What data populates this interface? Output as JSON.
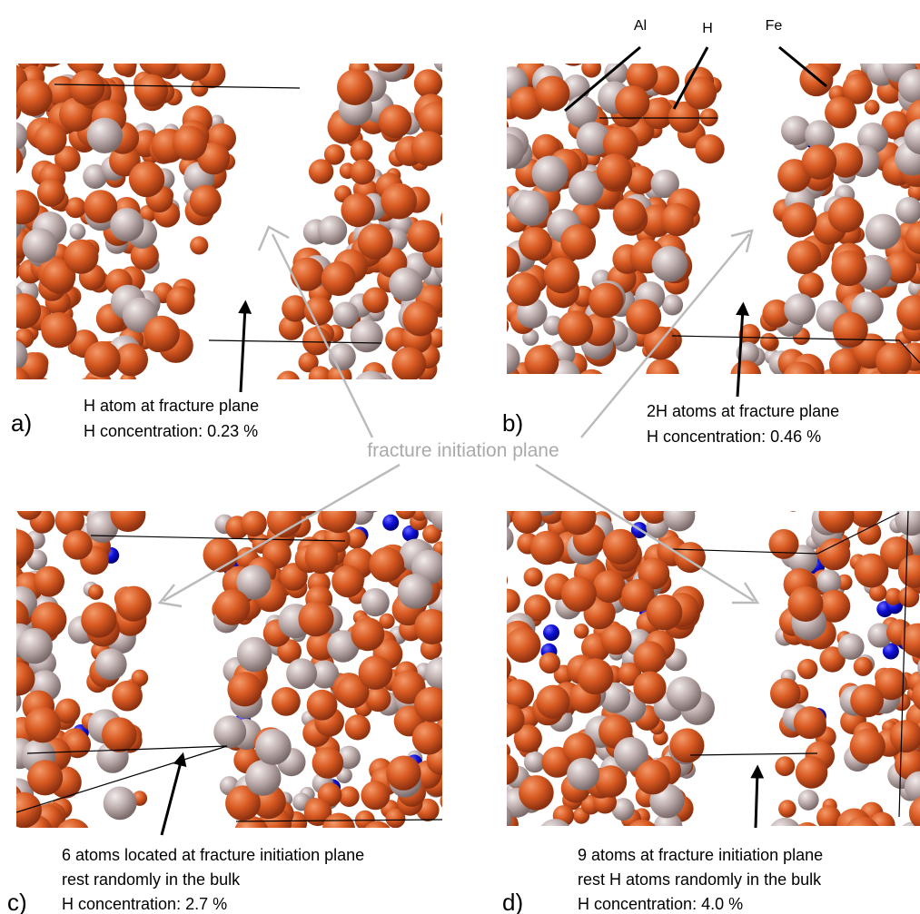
{
  "labels": {
    "al": "Al",
    "h": "H",
    "fe": "Fe"
  },
  "center_label": "fracture initiation plane",
  "panels": [
    {
      "letter": "a)",
      "lines": [
        "H atom at fracture plane",
        "H concentration: 0.23 %"
      ]
    },
    {
      "letter": "b)",
      "lines": [
        "2H atoms at fracture plane",
        "H concentration: 0.46 %"
      ]
    },
    {
      "letter": "c)",
      "lines": [
        "6 atoms located at fracture initiation plane",
        "rest randomly in the bulk",
        "H concentration: 2.7 %"
      ]
    },
    {
      "letter": "d)",
      "lines": [
        "9 atoms at fracture initiation plane",
        "rest H atoms randomly in the bulk",
        "H concentration: 4.0 %"
      ]
    }
  ]
}
